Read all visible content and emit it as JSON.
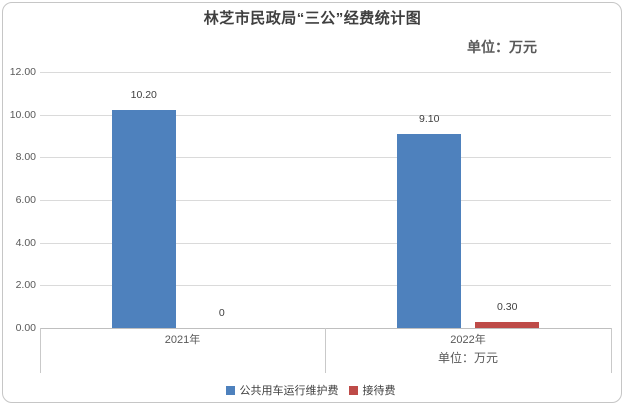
{
  "chart_data": {
    "type": "bar",
    "title": "林芝市民政局“三公”经费统计图",
    "unit_label": "单位：万元",
    "categories": [
      "2021年",
      "2022年"
    ],
    "category_note": {
      "under_category": "2022年",
      "text": "单位：万元"
    },
    "series": [
      {
        "name": "公共用车运行维护费",
        "color": "#4E81BD",
        "values": [
          10.2,
          9.1
        ],
        "labels": [
          "10.20",
          "9.10"
        ]
      },
      {
        "name": "接待费",
        "color": "#BE4B48",
        "values": [
          0,
          0.3
        ],
        "labels": [
          "0",
          "0.30"
        ]
      }
    ],
    "y_ticks": [
      0,
      2,
      4,
      6,
      8,
      10,
      12
    ],
    "y_tick_labels": [
      "0.00",
      "2.00",
      "4.00",
      "6.00",
      "8.00",
      "10.00",
      "12.00"
    ],
    "ylim": [
      0,
      12
    ],
    "grid": true,
    "legend_position": "bottom",
    "value_labels": true
  },
  "style_colors": {
    "bar_blue": "#4E81BD",
    "bar_red": "#BE4B48",
    "gridline": "#dadada",
    "axis_text": "#595959",
    "title_text": "#3f3f3f"
  }
}
